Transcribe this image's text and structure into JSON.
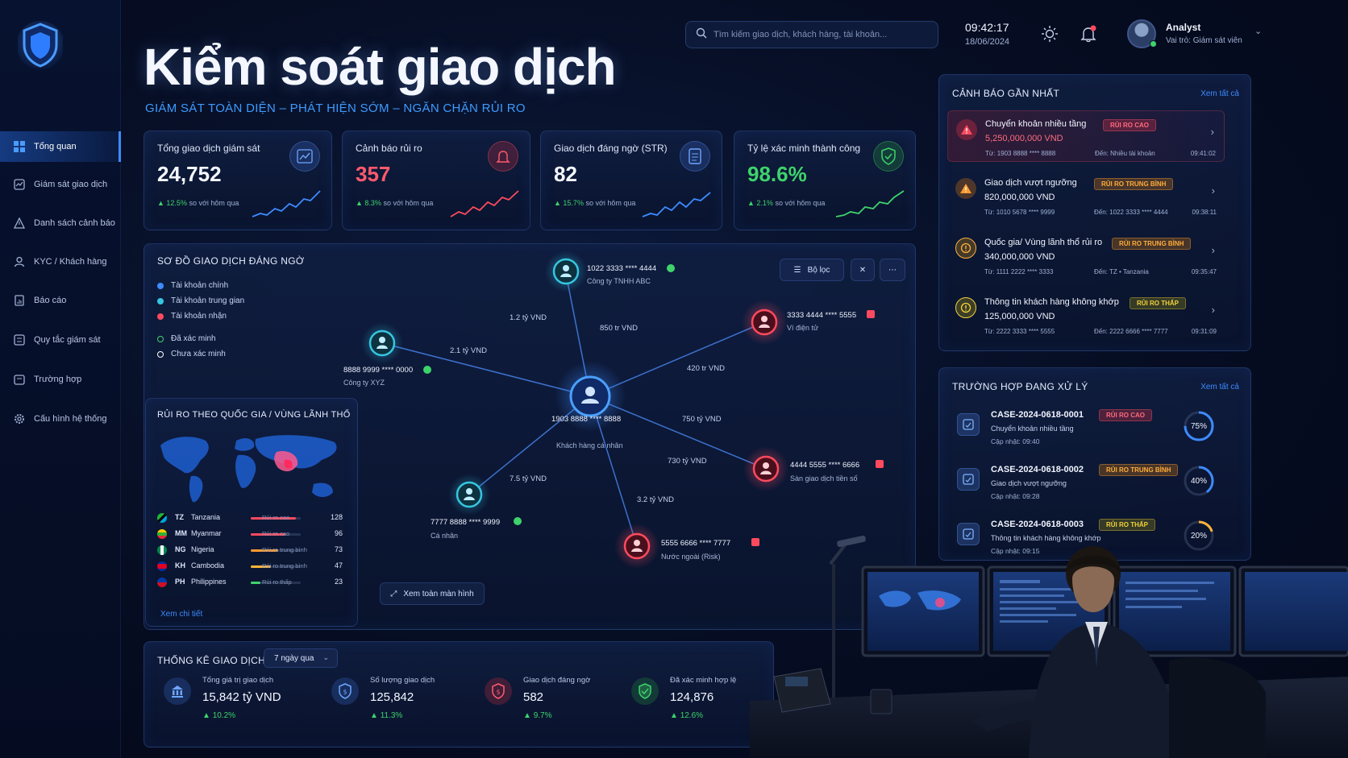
{
  "app": {
    "title": "Kiểm soát giao dịch",
    "subtitle": "GIÁM SÁT TOÀN DIỆN – PHÁT HIỆN SỚM – NGĂN CHẶN RỦI RO"
  },
  "sidebar": {
    "items": [
      {
        "label": "Tổng quan",
        "icon": "grid-icon",
        "active": true
      },
      {
        "label": "Giám sát giao dịch",
        "icon": "monitor-icon"
      },
      {
        "label": "Danh sách cảnh báo",
        "icon": "warning-icon"
      },
      {
        "label": "KYC / Khách hàng",
        "icon": "users-icon"
      },
      {
        "label": "Báo cáo",
        "icon": "report-icon"
      },
      {
        "label": "Quy tắc giám sát",
        "icon": "rules-icon"
      },
      {
        "label": "Trường hợp",
        "icon": "case-icon"
      },
      {
        "label": "Cấu hình hệ thống",
        "icon": "gear-icon"
      }
    ]
  },
  "header": {
    "search_placeholder": "Tìm kiếm giao dịch, khách hàng, tài khoản...",
    "time": "09:42:17",
    "date": "18/06/2024",
    "user_name": "Analyst",
    "user_role": "Vai trò: Giám sát viên"
  },
  "kpis": [
    {
      "label": "Tổng giao dịch giám sát",
      "value": "24,752",
      "change": "12.5%",
      "compare": "so với hôm qua",
      "color": "#f4f7ff",
      "accent": "#3d8bff"
    },
    {
      "label": "Cảnh báo rủi ro",
      "value": "357",
      "change": "8.3%",
      "compare": "so với hôm qua",
      "color": "#ff5a6e",
      "accent": "#ff4a5e"
    },
    {
      "label": "Giao dịch đáng ngờ (STR)",
      "value": "82",
      "change": "15.7%",
      "compare": "so với hôm qua",
      "color": "#f4f7ff",
      "accent": "#3d8bff"
    },
    {
      "label": "Tỷ lệ xác minh thành công",
      "value": "98.6%",
      "change": "2.1%",
      "compare": "so với hôm qua",
      "color": "#3ed36b",
      "accent": "#3ed36b"
    }
  ],
  "graph": {
    "title": "SƠ ĐỒ GIAO DỊCH ĐÁNG NGỜ",
    "filter_label": "Bộ lọc",
    "fullscreen_label": "Xem toàn màn hình",
    "legend": [
      {
        "label": "Tài khoản chính",
        "color": "#3d8bff"
      },
      {
        "label": "Tài khoản trung gian",
        "color": "#36c6e0"
      },
      {
        "label": "Tài khoản nhận",
        "color": "#ff4a5e"
      },
      {
        "label": "Đã xác minh",
        "color": "#3ed36b"
      },
      {
        "label": "Chưa xác minh",
        "color": "#ffffff"
      }
    ],
    "nodes": [
      {
        "id": "center",
        "account": "1903 8888 **** 8888",
        "name": "Khách hàng cá nhân"
      },
      {
        "id": "top",
        "account": "1022 3333 **** 4444",
        "name": "Công ty TNHH ABC"
      },
      {
        "id": "left",
        "account": "8888 9999 **** 0000",
        "name": "Công ty XYZ"
      },
      {
        "id": "bottomleft",
        "account": "7777 8888 **** 9999",
        "name": "Cá nhân"
      },
      {
        "id": "topright",
        "account": "3333 4444 **** 5555",
        "name": "Ví điện tử"
      },
      {
        "id": "right",
        "account": "4444 5555 **** 6666",
        "name": "Sàn giao dịch tiền số"
      },
      {
        "id": "bottom",
        "account": "5555 6666 **** 7777",
        "name": "Nước ngoài (Risk)"
      }
    ],
    "edges": [
      "1.2 tỷ VND",
      "850 tr VND",
      "2.1 tỷ VND",
      "420 tr VND",
      "750 tỷ VND",
      "730 tỷ VND",
      "7.5 tỷ VND",
      "3.2 tỷ VND"
    ]
  },
  "countries": {
    "title": "RỦI RO THEO QUỐC GIA / VÙNG LÃNH THỔ",
    "more": "Xem chi tiết",
    "rows": [
      {
        "code": "TZ",
        "name": "Tanzania",
        "risk": "Rủi ro cao",
        "count": "128",
        "level": 0.9,
        "color": "#ff4a5e"
      },
      {
        "code": "MM",
        "name": "Myanmar",
        "risk": "Rủi ro cao",
        "count": "96",
        "level": 0.7,
        "color": "#ff4a5e"
      },
      {
        "code": "NG",
        "name": "Nigeria",
        "risk": "Rủi ro trung bình",
        "count": "73",
        "level": 0.55,
        "color": "#ff9a2e"
      },
      {
        "code": "KH",
        "name": "Cambodia",
        "risk": "Rủi ro trung bình",
        "count": "47",
        "level": 0.4,
        "color": "#ffb43a"
      },
      {
        "code": "PH",
        "name": "Philippines",
        "risk": "Rủi ro thấp",
        "count": "23",
        "level": 0.2,
        "color": "#3ed36b"
      }
    ]
  },
  "stats": {
    "title": "THỐNG KÊ GIAO DỊCH",
    "range": "7 ngày qua",
    "items": [
      {
        "label": "Tổng giá trị giao dịch",
        "value": "15,842 tỷ VND",
        "change": "10.2%"
      },
      {
        "label": "Số lượng giao dịch",
        "value": "125,842",
        "change": "11.3%"
      },
      {
        "label": "Giao dịch đáng ngờ",
        "value": "582",
        "change": "9.7%"
      },
      {
        "label": "Đã xác minh hợp lệ",
        "value": "124,876",
        "change": "12.6%"
      }
    ]
  },
  "alerts": {
    "title": "CẢNH BÁO GẦN NHẤT",
    "more": "Xem tất cả",
    "items": [
      {
        "title": "Chuyển khoản nhiều tầng",
        "badge": "RỦI RO CAO",
        "amount": "5,250,000,000  VND",
        "from": "Từ: 1903 8888 **** 8888",
        "to": "Đến: Nhiều tài khoản",
        "time": "09:41:02"
      },
      {
        "title": "Giao dịch vượt ngưỡng",
        "badge": "RỦI RO TRUNG BÌNH",
        "amount": "820,000,000 VND",
        "from": "Từ: 1010 5678 **** 9999",
        "to": "Đến: 1022 3333 **** 4444",
        "time": "09:38:11"
      },
      {
        "title": "Quốc gia/ Vùng lãnh thổ rủi ro",
        "badge": "RỦI RO TRUNG BÌNH",
        "amount": "340,000,000 VND",
        "from": "Từ: 1111 2222 **** 3333",
        "to": "Đến: TZ • Tanzania",
        "time": "09:35:47"
      },
      {
        "title": "Thông tin khách hàng không khớp",
        "badge": "RỦI RO THẤP",
        "amount": "125,000,000 VND",
        "from": "Từ: 2222 3333 **** 5555",
        "to": "Đến: 2222 6666 **** 7777",
        "time": "09:31:09"
      }
    ]
  },
  "cases": {
    "title": "TRƯỜNG HỢP ĐANG XỬ LÝ",
    "more": "Xem tất cả",
    "items": [
      {
        "id": "CASE-2024-0618-0001",
        "badge": "RỦI RO CAO",
        "desc": "Chuyển khoản nhiều tầng",
        "updated": "Cập nhật: 09:40",
        "progress": "75%",
        "fraction": 0.75,
        "color": "#3d8bff"
      },
      {
        "id": "CASE-2024-0618-0002",
        "badge": "RỦI RO TRUNG BÌNH",
        "desc": "Giao dịch vượt ngưỡng",
        "updated": "Cập nhật: 09:28",
        "progress": "40%",
        "fraction": 0.4,
        "color": "#3d8bff"
      },
      {
        "id": "CASE-2024-0618-0003",
        "badge": "RỦI RO THẤP",
        "desc": "Thông tin khách hàng không khớp",
        "updated": "Cập nhật: 09:15",
        "progress": "20%",
        "fraction": 0.2,
        "color": "#ffb43a"
      }
    ]
  }
}
